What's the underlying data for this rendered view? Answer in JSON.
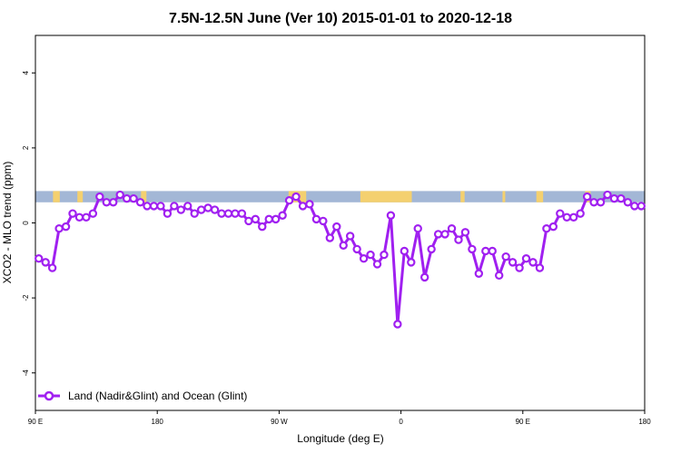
{
  "chart_data": {
    "type": "line",
    "title": "7.5N-12.5N June (Ver 10)   2015-01-01 to 2020-12-18",
    "xlabel": "Longitude (deg E)",
    "ylabel": "XCO2 - MLO trend (ppm)",
    "xlim": [
      90,
      540
    ],
    "ylim": [
      -5,
      5
    ],
    "x_tick_values": [
      90,
      180,
      270,
      360,
      450,
      540
    ],
    "x_tick_labels": [
      "90 E",
      "180",
      "90 W",
      "0",
      "90 E",
      "180"
    ],
    "y_tick_values": [
      -4,
      -2,
      0,
      2,
      4
    ],
    "y_tick_labels": [
      "-4",
      "-2",
      "0",
      "2",
      "4"
    ],
    "land_mask_band": {
      "y_range": [
        0.55,
        0.85
      ],
      "ocean_color": "#a3b7d6",
      "land_color": "#f4d06f",
      "land_segments": [
        [
          103,
          108
        ],
        [
          121,
          125
        ],
        [
          168,
          172
        ],
        [
          277,
          290
        ],
        [
          330,
          368
        ],
        [
          404,
          407
        ],
        [
          435,
          437
        ],
        [
          460,
          465
        ],
        [
          496,
          500
        ]
      ]
    },
    "series": [
      {
        "name": "Land (Nadir&Glint) and Ocean (Glint)",
        "color": "#a020f0",
        "x": [
          92.5,
          97.5,
          102.5,
          107.5,
          112.5,
          117.5,
          122.5,
          127.5,
          132.5,
          137.5,
          142.5,
          147.5,
          152.5,
          157.5,
          162.5,
          167.5,
          172.5,
          177.5,
          182.5,
          187.5,
          192.5,
          197.5,
          202.5,
          207.5,
          212.5,
          217.5,
          222.5,
          227.5,
          232.5,
          237.5,
          242.5,
          247.5,
          252.5,
          257.5,
          262.5,
          267.5,
          272.5,
          277.5,
          282.5,
          287.5,
          292.5,
          297.5,
          302.5,
          307.5,
          312.5,
          317.5,
          322.5,
          327.5,
          332.5,
          337.5,
          342.5,
          347.5,
          352.5,
          357.5,
          362.5,
          367.5,
          372.5,
          377.5,
          382.5,
          387.5,
          392.5,
          397.5,
          402.5,
          407.5,
          412.5,
          417.5,
          422.5,
          427.5,
          432.5,
          437.5,
          442.5,
          447.5,
          452.5,
          457.5,
          462.5,
          467.5,
          472.5,
          477.5,
          482.5,
          487.5,
          492.5,
          497.5,
          502.5,
          507.5,
          512.5,
          517.5,
          522.5,
          527.5,
          532.5,
          537.5
        ],
        "y": [
          -0.95,
          -1.05,
          -1.2,
          -0.15,
          -0.1,
          0.25,
          0.15,
          0.15,
          0.25,
          0.7,
          0.55,
          0.55,
          0.75,
          0.65,
          0.65,
          0.55,
          0.45,
          0.45,
          0.45,
          0.25,
          0.45,
          0.35,
          0.45,
          0.25,
          0.35,
          0.4,
          0.35,
          0.25,
          0.25,
          0.25,
          0.25,
          0.05,
          0.1,
          -0.1,
          0.1,
          0.1,
          0.2,
          0.6,
          0.7,
          0.45,
          0.5,
          0.1,
          0.05,
          -0.4,
          -0.1,
          -0.6,
          -0.35,
          -0.7,
          -0.95,
          -0.85,
          -1.1,
          -0.85,
          0.2,
          -2.7,
          -0.75,
          -1.05,
          -0.15,
          -1.45,
          -0.7,
          -0.3,
          -0.3,
          -0.15,
          -0.45,
          -0.25,
          -0.7,
          -1.35,
          -0.75,
          -0.75,
          -1.4,
          -0.9,
          -1.05,
          -1.2,
          -0.95,
          -1.05,
          -1.2,
          -0.15,
          -0.1,
          0.25,
          0.15,
          0.15,
          0.25,
          0.7,
          0.55,
          0.55,
          0.75,
          0.65,
          0.65,
          0.55,
          0.45,
          0.45
        ]
      }
    ],
    "legend": {
      "placement": "bottom-left"
    }
  }
}
